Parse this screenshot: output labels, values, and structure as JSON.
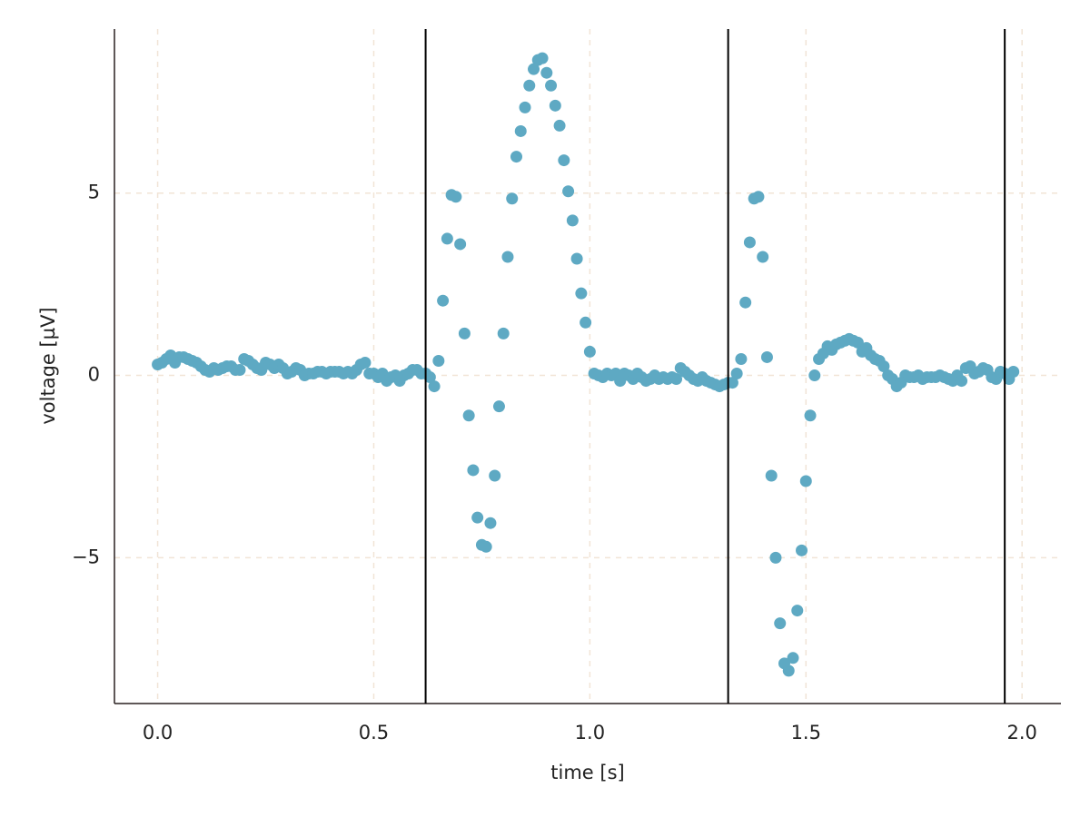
{
  "chart_data": {
    "type": "scatter",
    "xlabel": "time [s]",
    "ylabel": "voltage [µV]",
    "xlim": [
      -0.1,
      2.09
    ],
    "ylim": [
      -9,
      9.5
    ],
    "xticks": [
      {
        "value": 0,
        "label": "0.0"
      },
      0.5,
      {
        "value": 1,
        "label": "1.0"
      },
      1.5,
      {
        "value": 2,
        "label": "2.0"
      }
    ],
    "yticks": [
      {
        "value": -5,
        "label": "−5"
      },
      0,
      5
    ],
    "grid": true,
    "vlines": [
      0.62,
      1.32,
      1.96
    ],
    "series": [
      {
        "color": "#5ea9c3",
        "x": [
          0.0,
          0.01,
          0.02,
          0.03,
          0.04,
          0.05,
          0.06,
          0.07,
          0.08,
          0.09,
          0.1,
          0.11,
          0.12,
          0.13,
          0.14,
          0.15,
          0.16,
          0.17,
          0.18,
          0.19,
          0.2,
          0.21,
          0.22,
          0.23,
          0.24,
          0.25,
          0.26,
          0.27,
          0.28,
          0.29,
          0.3,
          0.31,
          0.32,
          0.33,
          0.34,
          0.35,
          0.36,
          0.37,
          0.38,
          0.39,
          0.4,
          0.41,
          0.42,
          0.43,
          0.44,
          0.45,
          0.46,
          0.47,
          0.48,
          0.49,
          0.5,
          0.51,
          0.52,
          0.53,
          0.54,
          0.55,
          0.56,
          0.57,
          0.58,
          0.59,
          0.6,
          0.61,
          0.62,
          0.63,
          0.64,
          0.65,
          0.66,
          0.67,
          0.68,
          0.69,
          0.7,
          0.71,
          0.72,
          0.73,
          0.74,
          0.75,
          0.76,
          0.77,
          0.78,
          0.79,
          0.8,
          0.81,
          0.82,
          0.83,
          0.84,
          0.85,
          0.86,
          0.87,
          0.88,
          0.89,
          0.9,
          0.91,
          0.92,
          0.93,
          0.94,
          0.95,
          0.96,
          0.97,
          0.98,
          0.99,
          1.0,
          1.01,
          1.02,
          1.03,
          1.04,
          1.05,
          1.06,
          1.07,
          1.08,
          1.09,
          1.1,
          1.11,
          1.12,
          1.13,
          1.14,
          1.15,
          1.16,
          1.17,
          1.18,
          1.19,
          1.2,
          1.21,
          1.22,
          1.23,
          1.24,
          1.25,
          1.26,
          1.27,
          1.28,
          1.29,
          1.3,
          1.31,
          1.32,
          1.33,
          1.34,
          1.35,
          1.36,
          1.37,
          1.38,
          1.39,
          1.4,
          1.41,
          1.42,
          1.43,
          1.44,
          1.45,
          1.46,
          1.47,
          1.48,
          1.49,
          1.5,
          1.51,
          1.52,
          1.53,
          1.54,
          1.55,
          1.56,
          1.57,
          1.58,
          1.59,
          1.6,
          1.61,
          1.62,
          1.63,
          1.64,
          1.65,
          1.66,
          1.67,
          1.68,
          1.69,
          1.7,
          1.71,
          1.72,
          1.73,
          1.74,
          1.75,
          1.76,
          1.77,
          1.78,
          1.79,
          1.8,
          1.81,
          1.82,
          1.83,
          1.84,
          1.85,
          1.86,
          1.87,
          1.88,
          1.89,
          1.9,
          1.91,
          1.92,
          1.93,
          1.94,
          1.95,
          1.96,
          1.97,
          1.98
        ],
        "values": [
          0.3,
          0.35,
          0.45,
          0.55,
          0.35,
          0.5,
          0.5,
          0.45,
          0.4,
          0.35,
          0.25,
          0.15,
          0.1,
          0.2,
          0.15,
          0.2,
          0.25,
          0.25,
          0.15,
          0.15,
          0.45,
          0.4,
          0.3,
          0.2,
          0.15,
          0.35,
          0.3,
          0.2,
          0.3,
          0.2,
          0.05,
          0.1,
          0.2,
          0.15,
          0.0,
          0.05,
          0.05,
          0.1,
          0.1,
          0.05,
          0.1,
          0.1,
          0.1,
          0.05,
          0.1,
          0.05,
          0.15,
          0.3,
          0.35,
          0.05,
          0.05,
          -0.05,
          0.05,
          -0.15,
          -0.05,
          0.0,
          -0.15,
          0.0,
          0.05,
          0.15,
          0.15,
          0.05,
          0.05,
          -0.05,
          -0.3,
          0.4,
          2.05,
          3.75,
          4.95,
          4.9,
          3.6,
          1.15,
          -1.1,
          -2.6,
          -3.9,
          -4.65,
          -4.7,
          -4.05,
          -2.75,
          -0.85,
          1.15,
          3.25,
          4.85,
          6.0,
          6.7,
          7.35,
          7.95,
          8.4,
          8.65,
          8.7,
          8.3,
          7.95,
          7.4,
          6.85,
          5.9,
          5.05,
          4.25,
          3.2,
          2.25,
          1.45,
          0.65,
          0.05,
          0.0,
          -0.05,
          0.05,
          0.0,
          0.05,
          -0.15,
          0.05,
          0.0,
          -0.1,
          0.05,
          -0.05,
          -0.15,
          -0.1,
          0.0,
          -0.1,
          -0.05,
          -0.1,
          -0.05,
          -0.1,
          0.2,
          0.1,
          0.0,
          -0.1,
          -0.15,
          -0.05,
          -0.15,
          -0.2,
          -0.25,
          -0.3,
          -0.25,
          -0.2,
          -0.2,
          0.05,
          0.45,
          2.0,
          3.65,
          4.85,
          4.9,
          3.25,
          0.5,
          -2.75,
          -5.0,
          -6.8,
          -7.9,
          -8.1,
          -7.75,
          -6.45,
          -4.8,
          -2.9,
          -1.1,
          0.0,
          0.45,
          0.6,
          0.8,
          0.7,
          0.85,
          0.9,
          0.95,
          1.0,
          0.95,
          0.9,
          0.65,
          0.75,
          0.55,
          0.45,
          0.4,
          0.25,
          0.0,
          -0.1,
          -0.3,
          -0.2,
          0.0,
          -0.05,
          -0.05,
          0.0,
          -0.1,
          -0.05,
          -0.05,
          -0.05,
          0.0,
          -0.05,
          -0.1,
          -0.15,
          0.0,
          -0.15,
          0.2,
          0.25,
          0.05,
          0.1,
          0.2,
          0.15,
          -0.05,
          -0.1,
          0.1,
          0.05,
          -0.1,
          0.1
        ]
      }
    ]
  }
}
